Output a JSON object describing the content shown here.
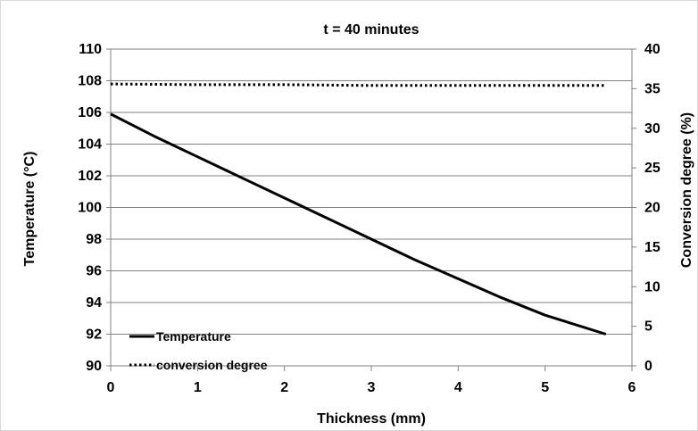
{
  "chart_data": {
    "type": "line",
    "title": "t = 40 minutes",
    "xlabel": "Thickness (mm)",
    "ylabel": "Temperature (°C)",
    "y2label": "Conversion degree (%)",
    "xlim": [
      0,
      6
    ],
    "ylim": [
      90,
      110
    ],
    "y2lim": [
      0,
      40
    ],
    "xticks": [
      "0",
      "1",
      "2",
      "3",
      "4",
      "5",
      "6"
    ],
    "yticks": [
      "90",
      "92",
      "94",
      "96",
      "98",
      "100",
      "102",
      "104",
      "106",
      "108",
      "110"
    ],
    "y2ticks": [
      "0",
      "5",
      "10",
      "15",
      "20",
      "25",
      "30",
      "35",
      "40"
    ],
    "grid": true,
    "legend_position": "bottom-left",
    "series": [
      {
        "name": "Temperature",
        "axis": "left",
        "style": "solid",
        "color": "#000000",
        "x": [
          0,
          0.5,
          1,
          1.5,
          2,
          2.5,
          3,
          3.5,
          4,
          4.5,
          5,
          5.7
        ],
        "y": [
          105.9,
          104.5,
          103.2,
          101.9,
          100.6,
          99.3,
          98.0,
          96.7,
          95.5,
          94.3,
          93.2,
          92.0
        ]
      },
      {
        "name": "conversion degree",
        "axis": "right",
        "style": "dotted",
        "color": "#000000",
        "x": [
          0,
          1,
          2,
          3,
          4,
          5,
          5.7
        ],
        "y": [
          35.6,
          35.5,
          35.5,
          35.4,
          35.4,
          35.4,
          35.4
        ]
      }
    ]
  }
}
